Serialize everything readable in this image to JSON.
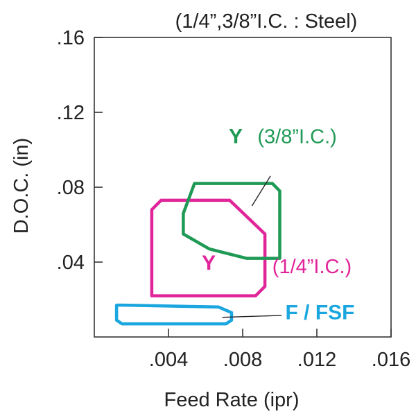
{
  "chart_data": {
    "type": "area",
    "title": "(1/4”,3/8”I.C. : Steel)",
    "xlabel": "Feed Rate (ipr)",
    "ylabel": "D.O.C. (in)",
    "xlim": [
      0,
      0.016
    ],
    "ylim": [
      0,
      0.16
    ],
    "x_ticks": [
      0.004,
      0.008,
      0.012,
      0.016
    ],
    "x_tick_labels": [
      ".004",
      ".008",
      ".012",
      ".016"
    ],
    "y_ticks": [
      0.04,
      0.08,
      0.12,
      0.16
    ],
    "y_tick_labels": [
      ".04",
      ".08",
      ".12",
      ".16"
    ],
    "grid": false,
    "colors": {
      "y_1_4": "#e0249a",
      "y_3_8": "#1f9a55",
      "fsf": "#1aa6df",
      "axis": "#333333"
    },
    "regions": [
      {
        "key": "y_1_4",
        "polygon": [
          [
            0.0031,
            0.022
          ],
          [
            0.0031,
            0.068
          ],
          [
            0.0036,
            0.073
          ],
          [
            0.0073,
            0.073
          ],
          [
            0.0092,
            0.055
          ],
          [
            0.0092,
            0.027
          ],
          [
            0.0087,
            0.022
          ]
        ],
        "label_main": "Y",
        "label_main_at": [
          0.0058,
          0.036
        ],
        "label_note": "(1/4”I.C.)",
        "label_note_at": [
          0.0096,
          0.034
        ]
      },
      {
        "key": "y_3_8",
        "polygon": [
          [
            0.0048,
            0.066
          ],
          [
            0.0048,
            0.055
          ],
          [
            0.0062,
            0.047
          ],
          [
            0.0082,
            0.042
          ],
          [
            0.01,
            0.042
          ],
          [
            0.01,
            0.078
          ],
          [
            0.0096,
            0.082
          ],
          [
            0.0054,
            0.082
          ]
        ],
        "label_main": "Y",
        "label_main_at": [
          0.008,
          0.1035
        ],
        "label_note": "(3/8”I.C.)",
        "label_note_at": [
          0.0088,
          0.1035
        ],
        "leader": [
          [
            0.0085,
            0.07
          ],
          [
            0.0095,
            0.086
          ]
        ]
      },
      {
        "key": "fsf",
        "polygon": [
          [
            0.0012,
            0.017
          ],
          [
            0.0012,
            0.009
          ],
          [
            0.0015,
            0.007
          ],
          [
            0.0071,
            0.007
          ],
          [
            0.0074,
            0.009
          ],
          [
            0.0074,
            0.013
          ],
          [
            0.0067,
            0.016
          ],
          [
            0.0016,
            0.017
          ]
        ],
        "label_main": "F / FSF",
        "label_main_at": [
          0.0103,
          0.0095
        ],
        "leader": [
          [
            0.0069,
            0.0105
          ],
          [
            0.0101,
            0.0115
          ]
        ]
      }
    ]
  }
}
